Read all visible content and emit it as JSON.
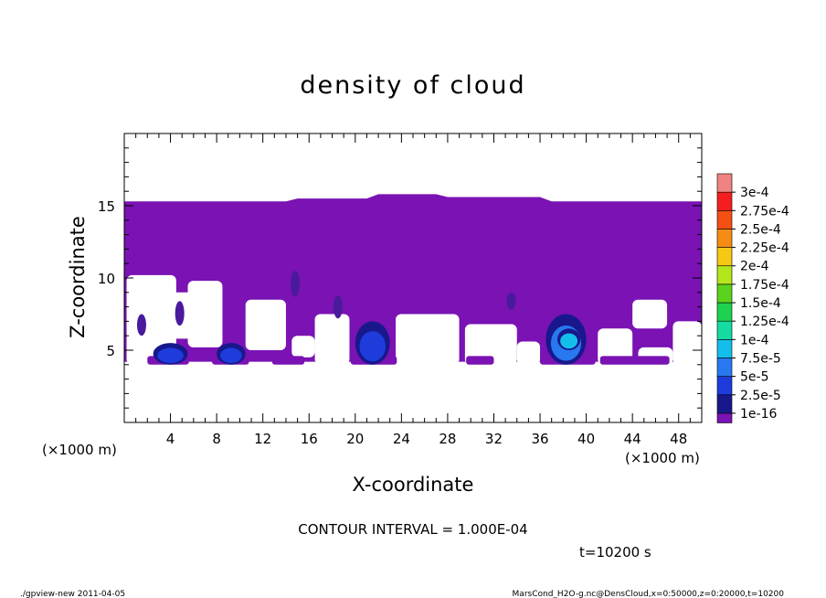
{
  "chart_data": {
    "type": "heatmap",
    "title": "density of cloud",
    "xlabel": "X-coordinate",
    "ylabel": "Z-coordinate",
    "x_unit_label": "(×1000 m)",
    "xlim": [
      0,
      50
    ],
    "ylim": [
      0,
      20
    ],
    "x_ticks": [
      4,
      8,
      12,
      16,
      20,
      24,
      28,
      32,
      36,
      40,
      44,
      48
    ],
    "y_ticks": [
      5,
      10,
      15
    ],
    "colorbar": {
      "levels": [
        "1e-16",
        "2.5e-5",
        "5e-5",
        "7.5e-5",
        "1e-4",
        "1.25e-4",
        "1.5e-4",
        "1.75e-4",
        "2e-4",
        "2.25e-4",
        "2.5e-4",
        "2.75e-4",
        "3e-4"
      ],
      "colors": [
        "#7a12b4",
        "#18188c",
        "#1e3cdc",
        "#2878f0",
        "#14beeb",
        "#14dca0",
        "#1ed250",
        "#5ad21e",
        "#b4e61e",
        "#f5c814",
        "#f58c14",
        "#f55014",
        "#f51e1e",
        "#f08282"
      ]
    },
    "regions": [
      {
        "level": 0,
        "z_range": [
          4.0,
          15.3
        ],
        "description_color": "#7a12b4"
      },
      {
        "level": 2,
        "x_range": [
          2.5,
          5.5
        ],
        "z_range": [
          4.0,
          5.5
        ]
      },
      {
        "level": 2,
        "x_range": [
          8.0,
          10.5
        ],
        "z_range": [
          4.0,
          5.5
        ]
      },
      {
        "level": 2,
        "x_range": [
          20.0,
          23.0
        ],
        "z_range": [
          4.0,
          7.0
        ]
      },
      {
        "level": 3,
        "x_range": [
          36.5,
          40.0
        ],
        "z_range": [
          4.0,
          7.5
        ]
      },
      {
        "level": 4,
        "x_range": [
          37.5,
          39.5
        ],
        "z_range": [
          5.0,
          6.5
        ]
      }
    ]
  },
  "contour_interval": "CONTOUR INTERVAL = 1.000E-04",
  "time_label": "t=10200 s",
  "footer_left": "./gpview-new   2011-04-05",
  "footer_right": "MarsCond_H2O-g.nc@DensCloud,x=0:50000,z=0:20000,t=10200"
}
